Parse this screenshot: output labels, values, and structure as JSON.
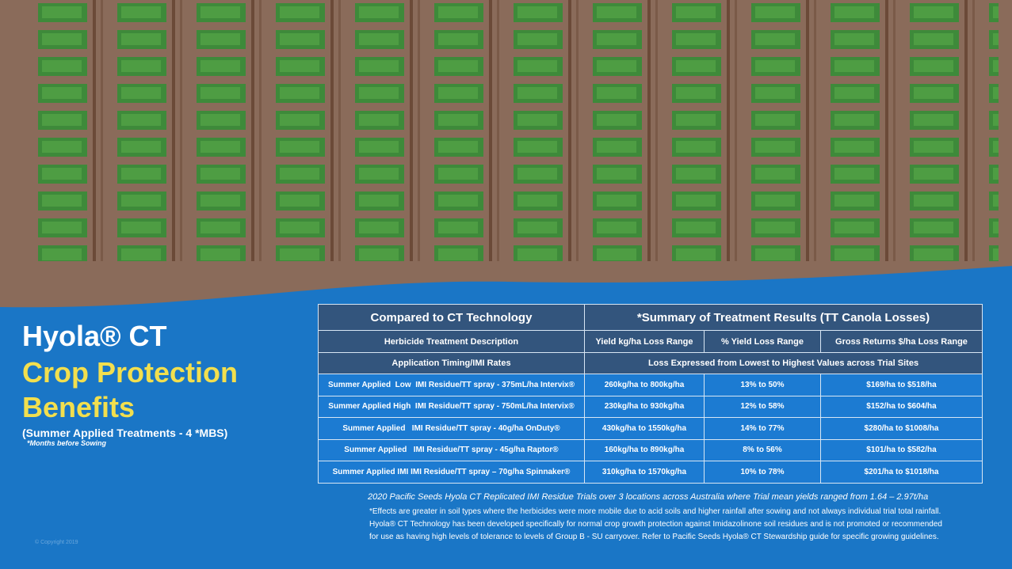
{
  "title": {
    "line1": "Hyola® CT",
    "line2": "Crop Protection",
    "line3": "Benefits",
    "subtitle": "(Summer Applied Treatments - 4 *MBS)",
    "note": "*Months before Sowing"
  },
  "table": {
    "header": [
      "Compared to CT Technology",
      "*Summary of Treatment Results (TT Canola Losses)"
    ],
    "subheader": [
      "Herbicide Treatment Description",
      "Yield kg/ha Loss Range",
      "% Yield Loss Range",
      "Gross Returns $/ha Loss Range"
    ],
    "subheader2": [
      "Application Timing/IMI Rates",
      "Loss Expressed from Lowest to Highest Values across Trial Sites"
    ],
    "rows": [
      [
        "Summer Applied  Low  IMI Residue/TT spray - 375mL/ha Intervix®",
        "260kg/ha to 800kg/ha",
        "13% to 50%",
        "$169/ha to $518/ha"
      ],
      [
        "Summer Applied High  IMI Residue/TT spray - 750mL/ha Intervix®",
        "230kg/ha to 930kg/ha",
        "12% to 58%",
        "$152/ha to $604/ha"
      ],
      [
        "Summer Applied   IMI Residue/TT spray - 40g/ha OnDuty®",
        "430kg/ha to 1550kg/ha",
        "14% to 77%",
        "$280/ha to $1008/ha"
      ],
      [
        "Summer Applied   IMI Residue/TT spray - 45g/ha Raptor®",
        "160kg/ha to 890kg/ha",
        "8% to 56%",
        "$101/ha to $582/ha"
      ],
      [
        "Summer Applied IMI IMI Residue/TT spray – 70g/ha Spinnaker®",
        "310kg/ha to 1570kg/ha",
        "10% to 78%",
        "$201/ha to $1018/ha"
      ]
    ]
  },
  "footnotes": {
    "caption": "2020 Pacific Seeds Hyola CT Replicated IMI Residue Trials over 3 locations across Australia where Trial mean yields ranged from 1.64 – 2.97t/ha",
    "lines": [
      "*Effects are greater in soil types where the herbicides were more mobile due to acid soils and higher rainfall after sowing and not always individual trial total rainfall.",
      "Hyola® CT Technology has been developed specifically for normal crop growth protection against Imidazolinone soil residues and is not promoted or recommended",
      "for use as having high levels of tolerance to levels of Group B - SU carryover. Refer to Pacific Seeds Hyola® CT Stewardship guide for specific growing guidelines."
    ]
  },
  "copyright": "© Copyright 2019"
}
